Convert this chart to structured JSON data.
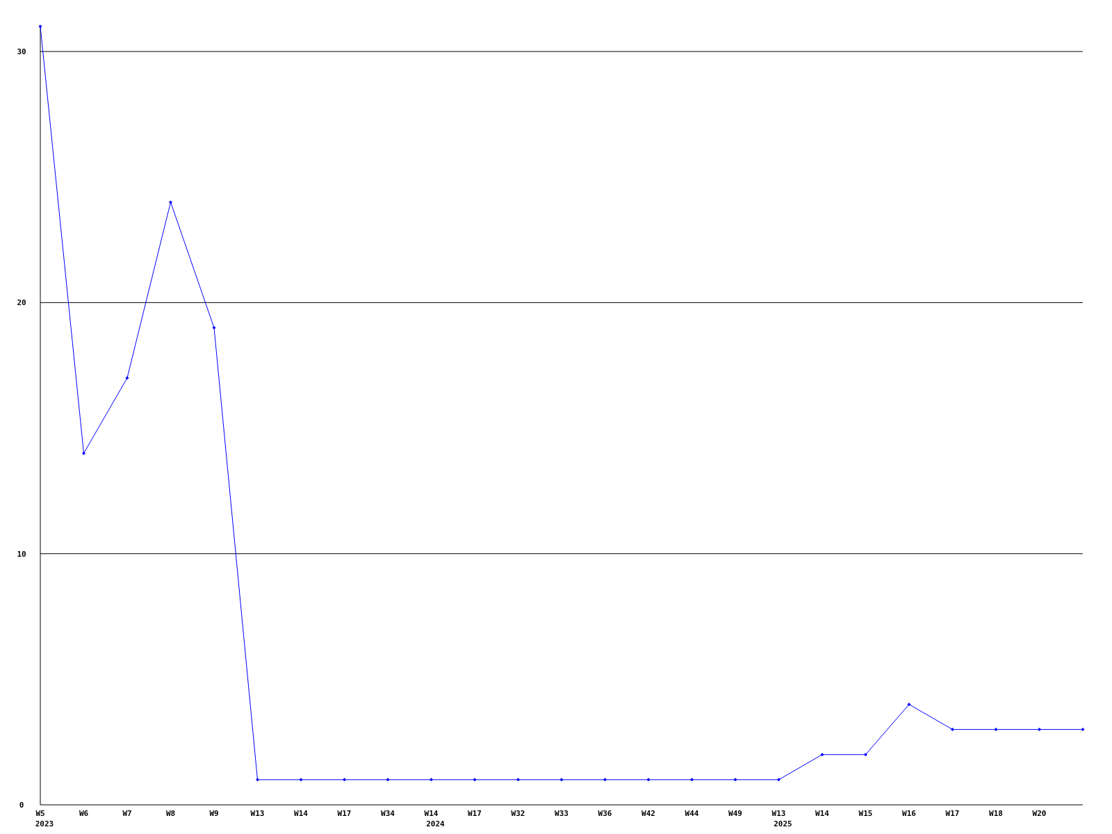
{
  "chart_data": {
    "type": "line",
    "categories": [
      "W5\n2023",
      "W6",
      "W7",
      "W8",
      "W9",
      "W13",
      "W14",
      "W17",
      "W34",
      "W14\n2024",
      "W17",
      "W32",
      "W33",
      "W36",
      "W42",
      "W44",
      "W49",
      "W13\n2025",
      "W14",
      "W15",
      "W16",
      "W17",
      "W18",
      "W20",
      null
    ],
    "series": [
      {
        "color": "#0000ff",
        "values": [
          31,
          14,
          17,
          24,
          19,
          1,
          1,
          1,
          1,
          1,
          1,
          1,
          1,
          1,
          1,
          1,
          1,
          1,
          2,
          2,
          4,
          3,
          3,
          3,
          3
        ]
      }
    ],
    "ylim": [
      0,
      31
    ],
    "yticks": [
      0,
      10,
      20,
      30
    ],
    "grid": "y",
    "marker": "diamond"
  }
}
